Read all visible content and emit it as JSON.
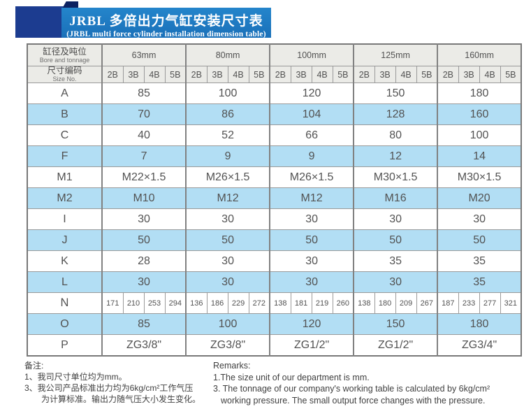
{
  "banner": {
    "title_zh": "JRBL 多倍出力气缸安装尺寸表",
    "title_en": "(JRBL multi force cylinder installation dimension table)"
  },
  "table": {
    "header": {
      "col1_row1_zh": "缸径及吨位",
      "col1_row1_en": "Bore and tonnage",
      "col1_row2_zh": "尺寸编码",
      "col1_row2_en": "Size No.",
      "bores": [
        "63mm",
        "80mm",
        "100mm",
        "125mm",
        "160mm"
      ],
      "sizes": [
        "2B",
        "3B",
        "4B",
        "5B"
      ]
    },
    "rows": [
      {
        "label": "A",
        "mode": "merged",
        "values": [
          "85",
          "100",
          "120",
          "150",
          "180"
        ]
      },
      {
        "label": "B",
        "mode": "merged",
        "values": [
          "70",
          "86",
          "104",
          "128",
          "160"
        ]
      },
      {
        "label": "C",
        "mode": "merged",
        "values": [
          "40",
          "52",
          "66",
          "80",
          "100"
        ]
      },
      {
        "label": "F",
        "mode": "merged",
        "values": [
          "7",
          "9",
          "9",
          "12",
          "14"
        ]
      },
      {
        "label": "M1",
        "mode": "merged",
        "values": [
          "M22×1.5",
          "M26×1.5",
          "M26×1.5",
          "M30×1.5",
          "M30×1.5"
        ]
      },
      {
        "label": "M2",
        "mode": "merged",
        "values": [
          "M10",
          "M12",
          "M12",
          "M16",
          "M20"
        ]
      },
      {
        "label": "I",
        "mode": "merged",
        "values": [
          "30",
          "30",
          "30",
          "30",
          "30"
        ]
      },
      {
        "label": "J",
        "mode": "merged",
        "values": [
          "50",
          "50",
          "50",
          "50",
          "50"
        ]
      },
      {
        "label": "K",
        "mode": "merged",
        "values": [
          "28",
          "30",
          "30",
          "35",
          "35"
        ]
      },
      {
        "label": "L",
        "mode": "merged",
        "values": [
          "30",
          "30",
          "30",
          "30",
          "35"
        ]
      },
      {
        "label": "N",
        "mode": "per_size",
        "values": [
          [
            "171",
            "210",
            "253",
            "294"
          ],
          [
            "136",
            "186",
            "229",
            "272"
          ],
          [
            "138",
            "181",
            "219",
            "260"
          ],
          [
            "138",
            "180",
            "209",
            "267"
          ],
          [
            "187",
            "233",
            "277",
            "321"
          ]
        ]
      },
      {
        "label": "O",
        "mode": "merged",
        "values": [
          "85",
          "100",
          "120",
          "150",
          "180"
        ]
      },
      {
        "label": "P",
        "mode": "merged",
        "values": [
          "ZG3/8\"",
          "ZG3/8\"",
          "ZG1/2\"",
          "ZG1/2\"",
          "ZG3/4\""
        ]
      }
    ]
  },
  "remarks_zh": {
    "heading": "备注:",
    "lines": [
      {
        "text": "1、我司尺寸单位均为mm。",
        "indent": false
      },
      {
        "text": "3、我公司产品标准出力均为6kg/cm²工作气压",
        "indent": false
      },
      {
        "text": "为计算标准。输出力随气压大小发生变化。",
        "indent": true
      }
    ]
  },
  "remarks_en": {
    "heading": "Remarks:",
    "lines": [
      {
        "text": "1.The size unit of our department is mm.",
        "indent": false
      },
      {
        "text": "3. The tonnage of our company's working table is calculated by 6kg/cm²",
        "indent": false
      },
      {
        "text": "working pressure. The small output force changes with the pressure.",
        "indent": true
      }
    ]
  },
  "colors": {
    "banner_blue": "#1b77c0",
    "navy_accent": "#1c3c90",
    "row_blue": "#b2def4",
    "header_gray": "#ebebe7"
  }
}
